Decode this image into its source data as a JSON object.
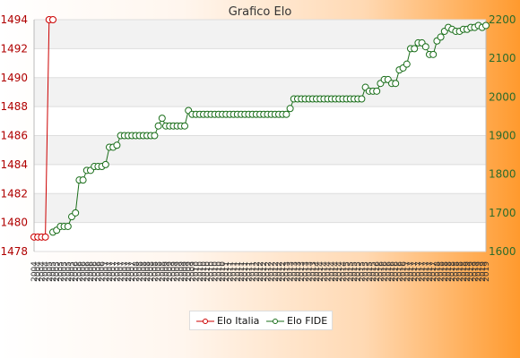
{
  "chart_data": {
    "type": "line",
    "title": "Grafico Elo",
    "left_axis": {
      "ylim": [
        1478,
        1494
      ],
      "ticks": [
        1478,
        1480,
        1482,
        1484,
        1486,
        1488,
        1490,
        1492,
        1494
      ],
      "color": "#b00000"
    },
    "right_axis": {
      "ylim": [
        1600,
        2200
      ],
      "ticks": [
        1600,
        1700,
        1800,
        1900,
        2000,
        2100,
        2200
      ],
      "color": "#2a6b2a"
    },
    "grid": true,
    "legend_position": "bottom-center",
    "series": [
      {
        "name": "Elo Italia",
        "axis": "left",
        "color": "#cc0000",
        "points": [
          [
            0,
            1479
          ],
          [
            1,
            1479
          ],
          [
            2,
            1479
          ],
          [
            3,
            1479
          ],
          [
            4,
            1494
          ],
          [
            5,
            1494
          ]
        ]
      },
      {
        "name": "Elo FIDE",
        "axis": "right",
        "color": "#1a6e1a",
        "points": [
          [
            5,
            1650
          ],
          [
            6,
            1655
          ],
          [
            7,
            1665
          ],
          [
            8,
            1665
          ],
          [
            9,
            1665
          ],
          [
            10,
            1690
          ],
          [
            11,
            1700
          ],
          [
            12,
            1785
          ],
          [
            13,
            1785
          ],
          [
            14,
            1810
          ],
          [
            15,
            1810
          ],
          [
            16,
            1820
          ],
          [
            17,
            1820
          ],
          [
            18,
            1820
          ],
          [
            19,
            1825
          ],
          [
            20,
            1870
          ],
          [
            21,
            1870
          ],
          [
            22,
            1875
          ],
          [
            23,
            1900
          ],
          [
            24,
            1900
          ],
          [
            25,
            1900
          ],
          [
            26,
            1900
          ],
          [
            27,
            1900
          ],
          [
            28,
            1900
          ],
          [
            29,
            1900
          ],
          [
            30,
            1900
          ],
          [
            31,
            1900
          ],
          [
            32,
            1900
          ],
          [
            33,
            1925
          ],
          [
            34,
            1945
          ],
          [
            35,
            1925
          ],
          [
            36,
            1925
          ],
          [
            37,
            1925
          ],
          [
            38,
            1925
          ],
          [
            39,
            1925
          ],
          [
            40,
            1925
          ],
          [
            41,
            1965
          ],
          [
            42,
            1955
          ],
          [
            43,
            1955
          ],
          [
            44,
            1955
          ],
          [
            45,
            1955
          ],
          [
            46,
            1955
          ],
          [
            47,
            1955
          ],
          [
            48,
            1955
          ],
          [
            49,
            1955
          ],
          [
            50,
            1955
          ],
          [
            51,
            1955
          ],
          [
            52,
            1955
          ],
          [
            53,
            1955
          ],
          [
            54,
            1955
          ],
          [
            55,
            1955
          ],
          [
            56,
            1955
          ],
          [
            57,
            1955
          ],
          [
            58,
            1955
          ],
          [
            59,
            1955
          ],
          [
            60,
            1955
          ],
          [
            61,
            1955
          ],
          [
            62,
            1955
          ],
          [
            63,
            1955
          ],
          [
            64,
            1955
          ],
          [
            65,
            1955
          ],
          [
            66,
            1955
          ],
          [
            67,
            1955
          ],
          [
            68,
            1970
          ],
          [
            69,
            1995
          ],
          [
            70,
            1995
          ],
          [
            71,
            1995
          ],
          [
            72,
            1995
          ],
          [
            73,
            1995
          ],
          [
            74,
            1995
          ],
          [
            75,
            1995
          ],
          [
            76,
            1995
          ],
          [
            77,
            1995
          ],
          [
            78,
            1995
          ],
          [
            79,
            1995
          ],
          [
            80,
            1995
          ],
          [
            81,
            1995
          ],
          [
            82,
            1995
          ],
          [
            83,
            1995
          ],
          [
            84,
            1995
          ],
          [
            85,
            1995
          ],
          [
            86,
            1995
          ],
          [
            87,
            1995
          ],
          [
            88,
            2025
          ],
          [
            89,
            2015
          ],
          [
            90,
            2015
          ],
          [
            91,
            2015
          ],
          [
            92,
            2035
          ],
          [
            93,
            2045
          ],
          [
            94,
            2045
          ],
          [
            95,
            2035
          ],
          [
            96,
            2035
          ],
          [
            97,
            2070
          ],
          [
            98,
            2075
          ],
          [
            99,
            2085
          ],
          [
            100,
            2125
          ],
          [
            101,
            2125
          ],
          [
            102,
            2140
          ],
          [
            103,
            2140
          ],
          [
            104,
            2130
          ],
          [
            105,
            2110
          ],
          [
            106,
            2110
          ],
          [
            107,
            2145
          ],
          [
            108,
            2155
          ],
          [
            109,
            2170
          ],
          [
            110,
            2180
          ],
          [
            111,
            2175
          ],
          [
            112,
            2170
          ],
          [
            113,
            2170
          ],
          [
            114,
            2175
          ],
          [
            115,
            2175
          ],
          [
            116,
            2180
          ],
          [
            117,
            2180
          ],
          [
            118,
            2185
          ],
          [
            119,
            2180
          ],
          [
            120,
            2185
          ]
        ]
      }
    ],
    "x_tick_labels": [
      "2004",
      "2004",
      "2004",
      "2004",
      "2005",
      "2005",
      "2005",
      "2005",
      "2005",
      "2005",
      "2005",
      "2006",
      "2006",
      "2006",
      "2006",
      "2006",
      "2006",
      "2006",
      "2006",
      "2007",
      "2007",
      "2007",
      "2007",
      "2007",
      "2007",
      "2007",
      "2007",
      "2008",
      "2008",
      "2008",
      "2008",
      "2008",
      "2008",
      "2008",
      "2008",
      "2009",
      "2009",
      "2009",
      "2009",
      "2009",
      "2009",
      "2009",
      "2009",
      "2010",
      "2010",
      "2010",
      "2010",
      "2010",
      "2010",
      "2010",
      "2010",
      "2011",
      "2011",
      "2011",
      "2011",
      "2011",
      "2011",
      "2011",
      "2011",
      "2012",
      "2012",
      "2012",
      "2012",
      "2012",
      "2012",
      "2012",
      "2012",
      "2013",
      "2013",
      "2013",
      "2013",
      "2013",
      "2013",
      "2013",
      "2013",
      "2014",
      "2014",
      "2014",
      "2014",
      "2014",
      "2014",
      "2014",
      "2014",
      "2015",
      "2015",
      "2015",
      "2015",
      "2015",
      "2015",
      "2015",
      "2015",
      "2016",
      "2016",
      "2016",
      "2016",
      "2016",
      "2016",
      "2016",
      "2016",
      "2017",
      "2017",
      "2017",
      "2017",
      "2017",
      "2017",
      "2017",
      "2017",
      "2018",
      "2018",
      "2018",
      "2018",
      "2018",
      "2018",
      "2018",
      "2018",
      "2019",
      "2019",
      "2019",
      "2019",
      "2019",
      "2019"
    ]
  },
  "legend": {
    "italia": "Elo Italia",
    "fide": "Elo FIDE"
  }
}
